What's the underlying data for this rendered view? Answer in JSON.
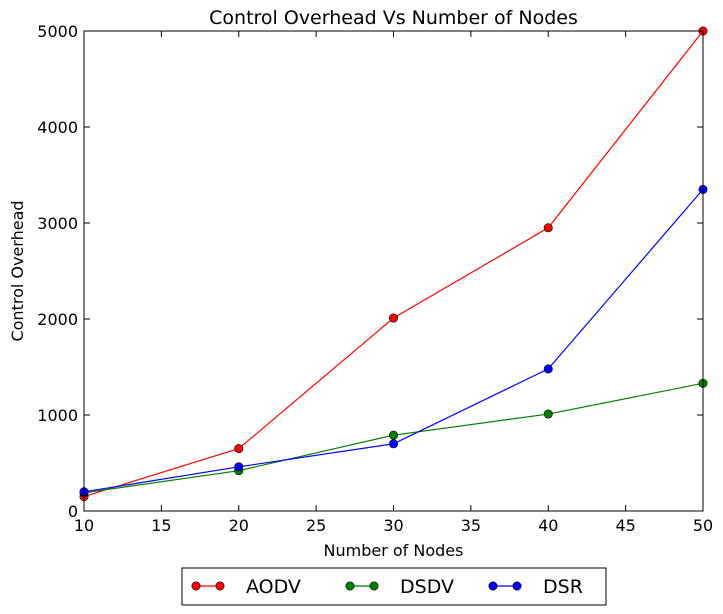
{
  "chart_data": {
    "type": "line",
    "title": "Control Overhead Vs Number of Nodes",
    "xlabel": "Number of Nodes",
    "ylabel": "Control Overhead",
    "xlim": [
      10,
      50
    ],
    "ylim": [
      0,
      5000
    ],
    "xticks": [
      10,
      15,
      20,
      25,
      30,
      35,
      40,
      45,
      50
    ],
    "yticks": [
      0,
      1000,
      2000,
      3000,
      4000,
      5000
    ],
    "x": [
      10,
      20,
      30,
      40,
      50
    ],
    "grid": false,
    "legend_position": "bottom-center (below plot)",
    "series": [
      {
        "name": "AODV",
        "color": "#ff0000",
        "marker": "circle",
        "values": [
          150,
          650,
          2010,
          2950,
          5000
        ]
      },
      {
        "name": "DSDV",
        "color": "#008000",
        "marker": "circle",
        "values": [
          190,
          420,
          790,
          1010,
          1330
        ]
      },
      {
        "name": "DSR",
        "color": "#0000ff",
        "marker": "circle",
        "values": [
          200,
          460,
          700,
          1480,
          3350
        ]
      }
    ]
  }
}
